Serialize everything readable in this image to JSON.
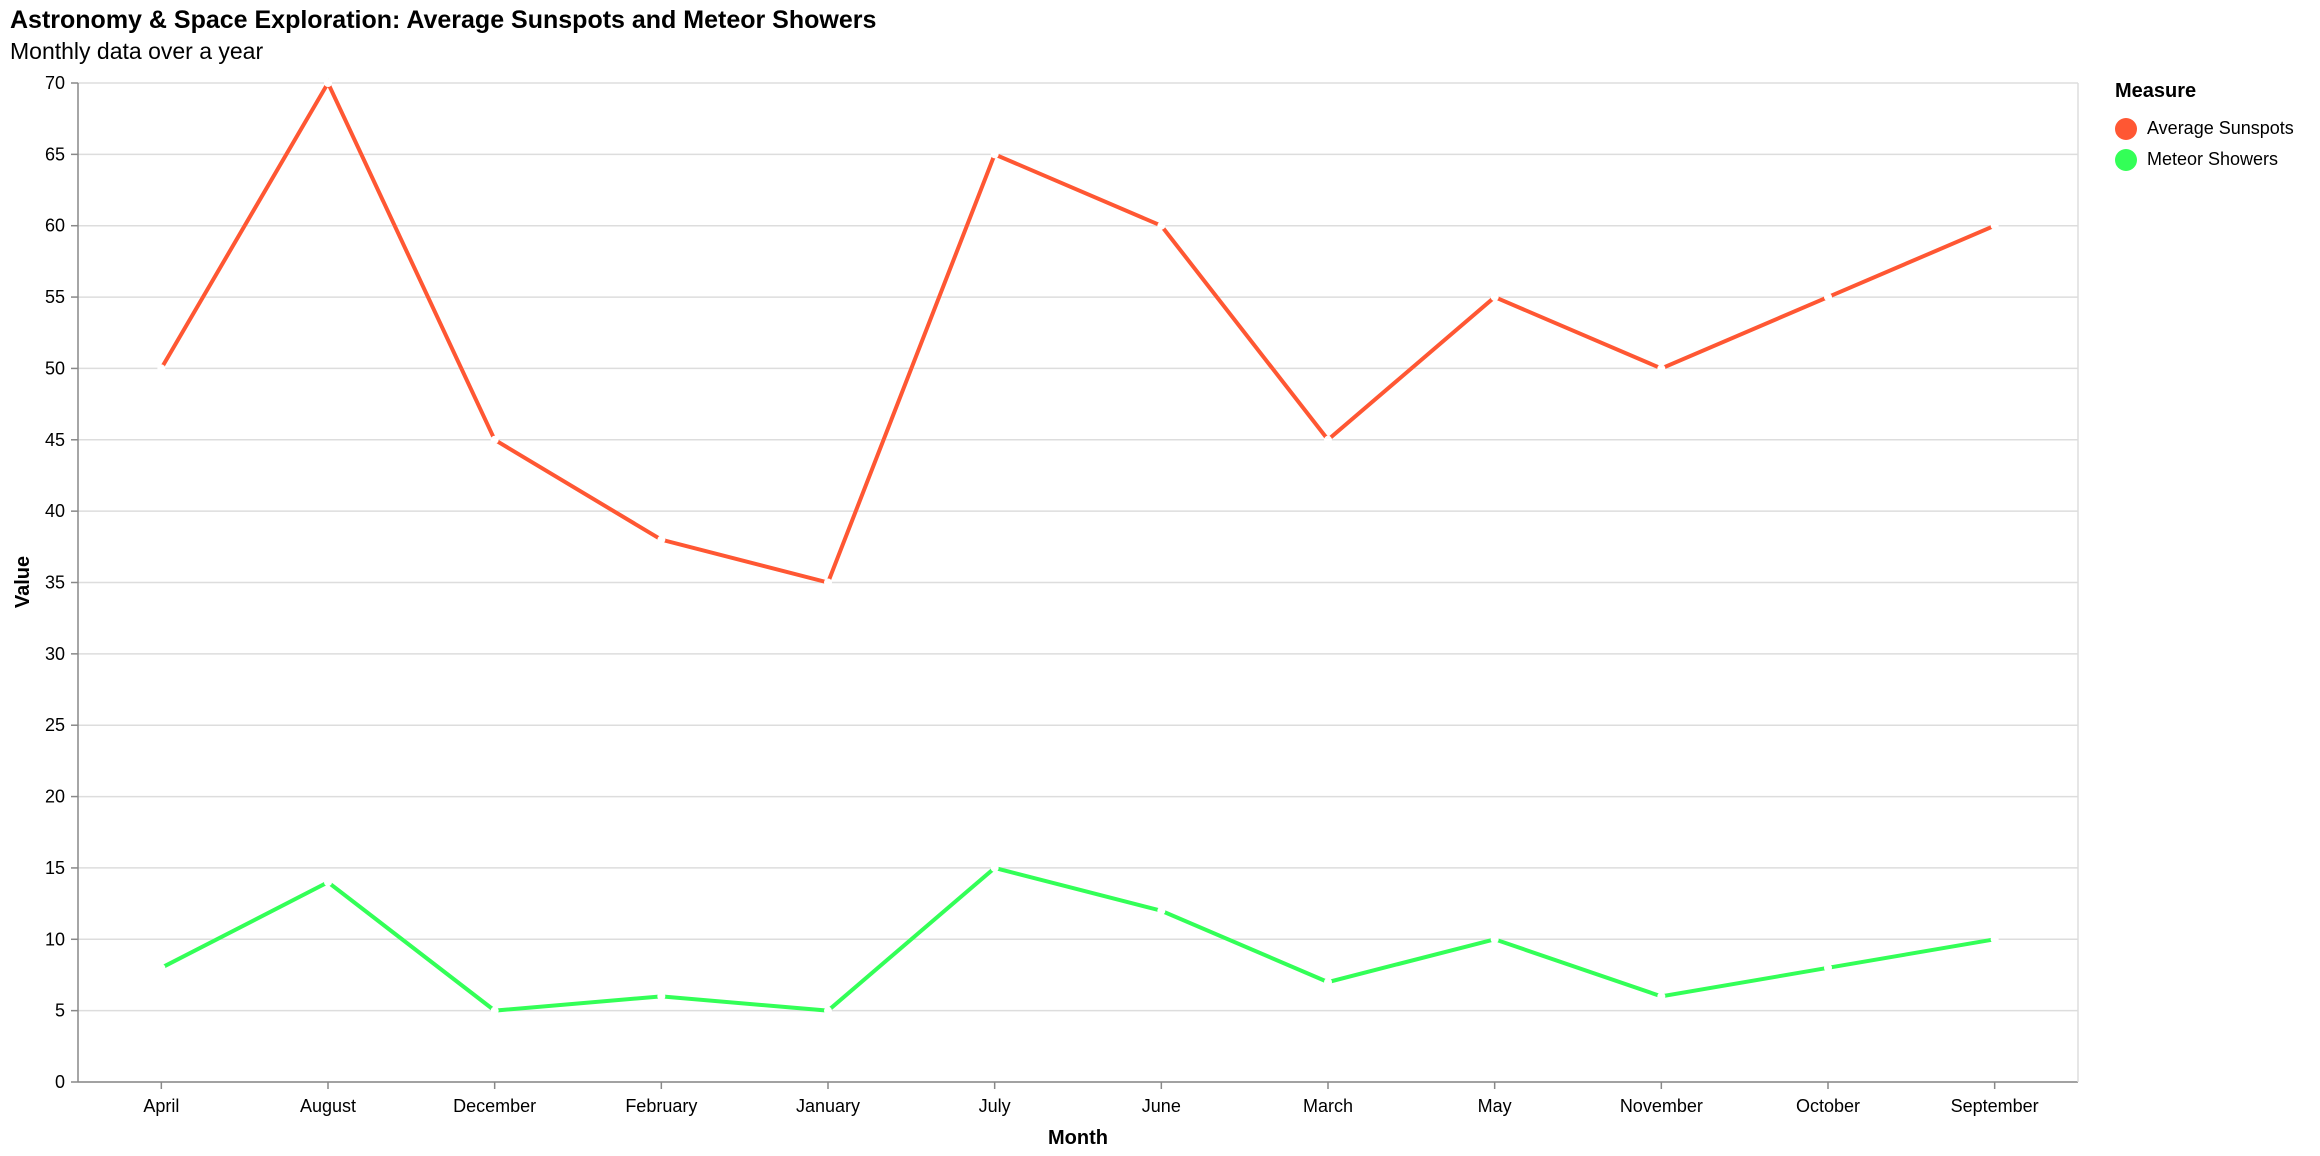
{
  "chart_data": {
    "type": "line",
    "title": "Astronomy & Space Exploration: Average Sunspots and Meteor Showers",
    "subtitle": "Monthly data over a year",
    "xlabel": "Month",
    "ylabel": "Value",
    "ylim": [
      0,
      70
    ],
    "ytick_step": 5,
    "grid": true,
    "legend_position": "top-right",
    "legend_title": "Measure",
    "categories": [
      "April",
      "August",
      "December",
      "February",
      "January",
      "July",
      "June",
      "March",
      "May",
      "November",
      "October",
      "September"
    ],
    "series": [
      {
        "name": "Average Sunspots",
        "color": "#ff5733",
        "values": [
          50,
          70,
          45,
          38,
          35,
          65,
          60,
          45,
          55,
          50,
          55,
          60
        ]
      },
      {
        "name": "Meteor Showers",
        "color": "#33ff57",
        "values": [
          8,
          14,
          5,
          6,
          5,
          15,
          12,
          7,
          10,
          6,
          8,
          10
        ]
      }
    ]
  }
}
